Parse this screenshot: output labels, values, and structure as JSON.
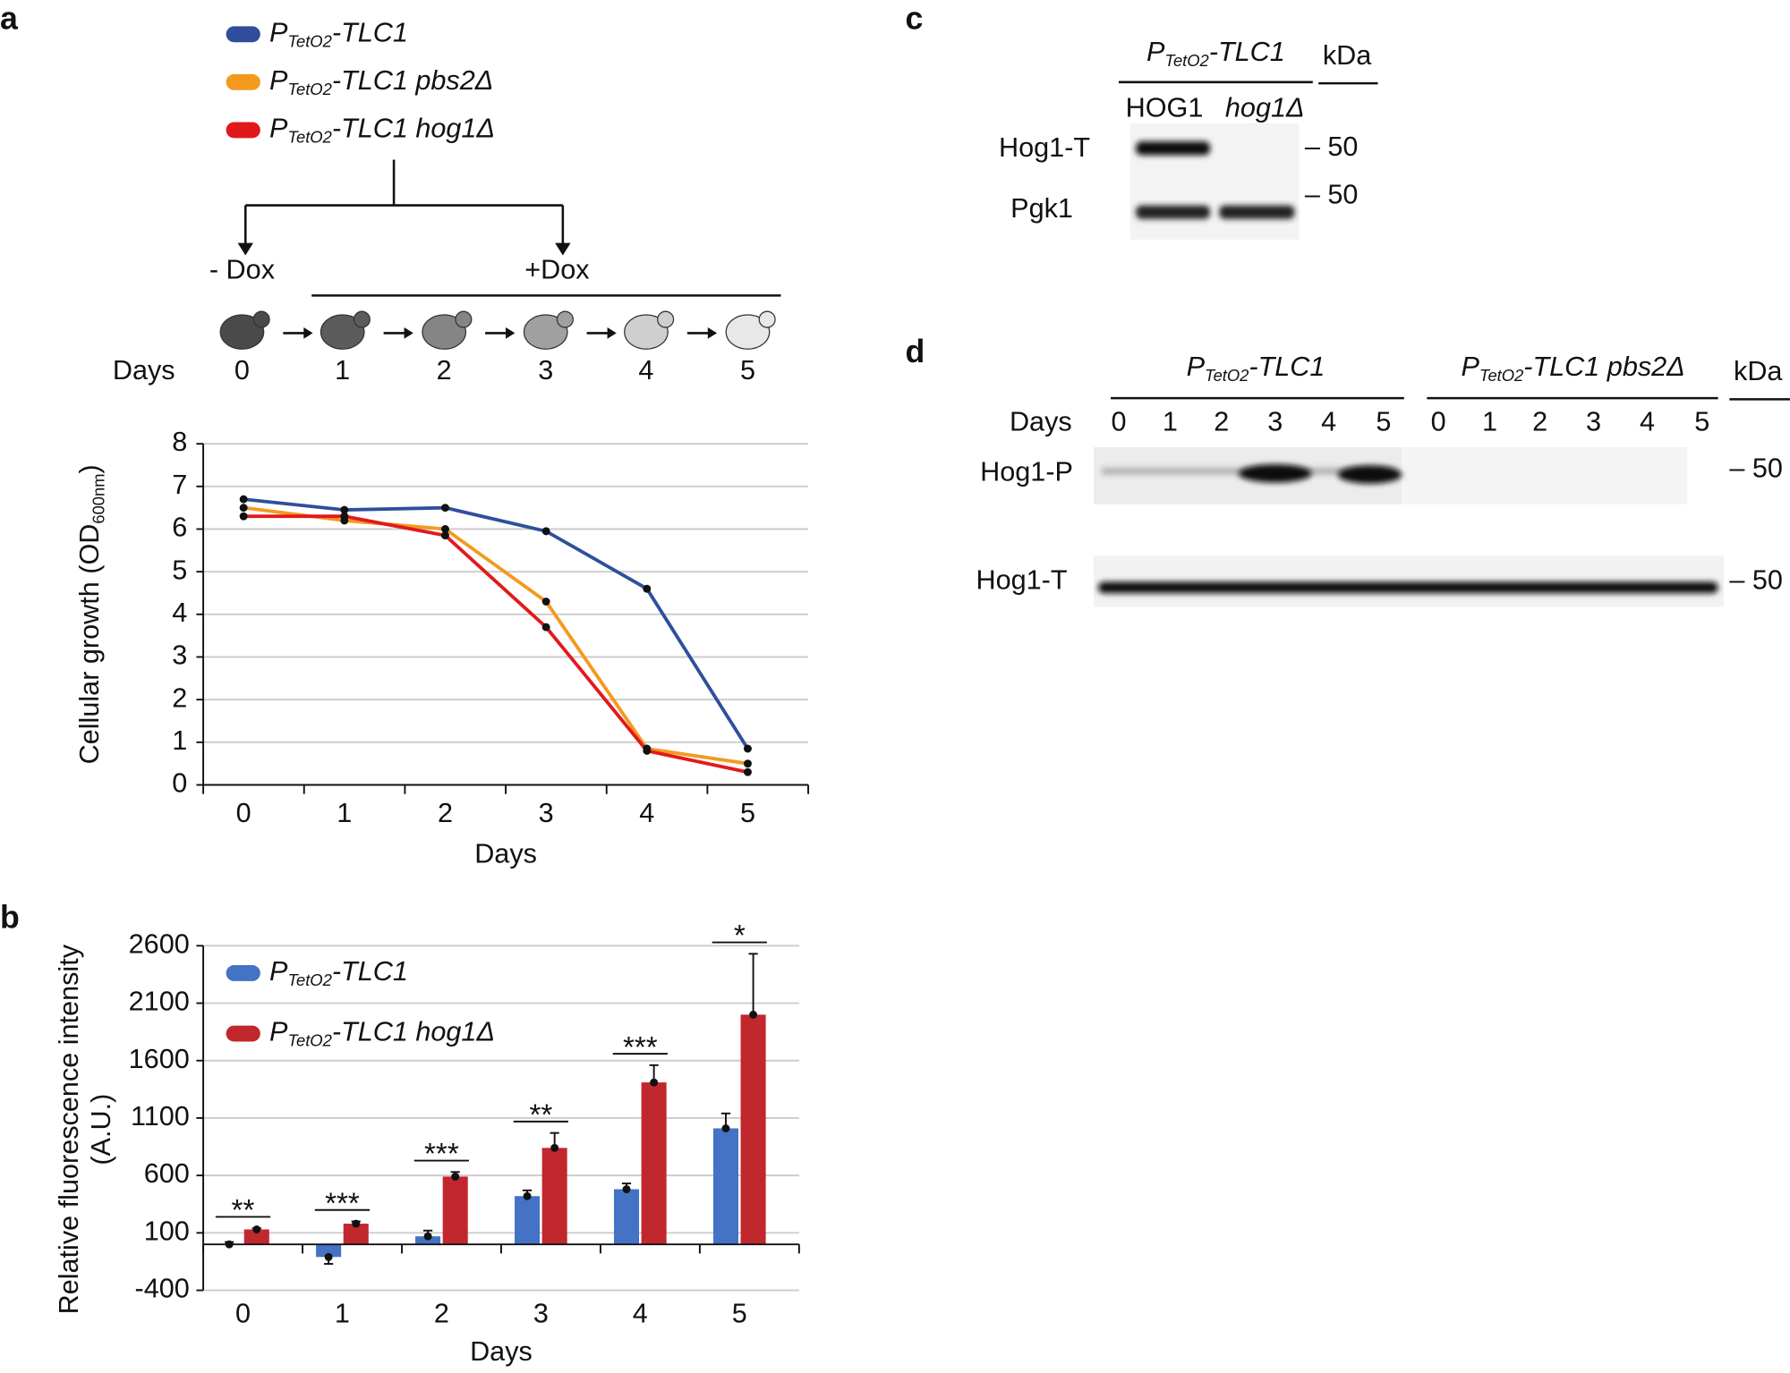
{
  "panel_labels": [
    "a",
    "b",
    "c",
    "d"
  ],
  "schematic": {
    "minus_dox": "- Dox",
    "plus_dox": "+Dox",
    "days_label": "Days",
    "days": [
      "0",
      "1",
      "2",
      "3",
      "4",
      "5"
    ]
  },
  "chart_data": [
    {
      "type": "line",
      "ylabel": [
        "Cellular growth  (OD",
        "600nm",
        ")"
      ],
      "xlabel": "Days",
      "categories": [
        "0",
        "1",
        "2",
        "3",
        "4",
        "5"
      ],
      "series": [
        {
          "name": [
            "P",
            "TetO2",
            "-TLC1"
          ],
          "color": "#2f4f9c",
          "values": [
            6.7,
            6.45,
            6.5,
            5.95,
            4.6,
            0.85
          ]
        },
        {
          "name": [
            "P",
            "TetO2",
            "-TLC1 pbs2Δ"
          ],
          "color": "#f39a1e",
          "values": [
            6.5,
            6.2,
            6.0,
            4.3,
            0.85,
            0.5
          ]
        },
        {
          "name": [
            "P",
            "TetO2",
            "-TLC1 hog1Δ"
          ],
          "color": "#e2191c",
          "values": [
            6.3,
            6.3,
            5.85,
            3.7,
            0.8,
            0.3
          ]
        }
      ],
      "ylim": [
        0,
        8
      ],
      "yticks": [
        0,
        1,
        2,
        3,
        4,
        5,
        6,
        7,
        8
      ],
      "grid": true
    },
    {
      "type": "bar",
      "ylabel": [
        "Relative fluorescence intensity",
        "(A.U.)"
      ],
      "xlabel": "Days",
      "categories": [
        "0",
        "1",
        "2",
        "3",
        "4",
        "5"
      ],
      "series": [
        {
          "name": [
            "P",
            "TetO2",
            "-TLC1"
          ],
          "color": "#4472c4",
          "values": [
            0,
            -110,
            70,
            420,
            480,
            1010
          ],
          "errors": [
            20,
            60,
            50,
            50,
            50,
            130
          ]
        },
        {
          "name": [
            "P",
            "TetO2",
            "-TLC1 hog1Δ"
          ],
          "color": "#c0282d",
          "values": [
            130,
            180,
            590,
            840,
            1410,
            2000
          ],
          "errors": [
            10,
            20,
            40,
            130,
            150,
            530
          ]
        }
      ],
      "annotations": [
        "**",
        "***",
        "***",
        "**",
        "***",
        "*"
      ],
      "ylim": [
        -400,
        2600
      ],
      "yticks": [
        -400,
        100,
        600,
        1100,
        1600,
        2100,
        2600
      ],
      "grid": true,
      "legend": "upper left"
    }
  ],
  "blot_c": {
    "title": [
      "P",
      "TetO2",
      "-TLC1"
    ],
    "kda": "kDa",
    "lanes": [
      "HOG1",
      "hog1Δ"
    ],
    "rows": [
      "Hog1-T",
      "Pgk1"
    ],
    "markers": [
      "– 50",
      "– 50"
    ]
  },
  "blot_d": {
    "days_label": "Days",
    "kda": "kDa",
    "groups": [
      {
        "title": [
          "P",
          "TetO2",
          "-TLC1"
        ],
        "lanes": [
          "0",
          "1",
          "2",
          "3",
          "4",
          "5"
        ]
      },
      {
        "title": [
          "P",
          "TetO2",
          "-TLC1 pbs2Δ"
        ],
        "lanes": [
          "0",
          "1",
          "2",
          "3",
          "4",
          "5"
        ]
      }
    ],
    "rows": [
      "Hog1-P",
      "Hog1-T"
    ],
    "markers": [
      "– 50",
      "– 50"
    ]
  }
}
